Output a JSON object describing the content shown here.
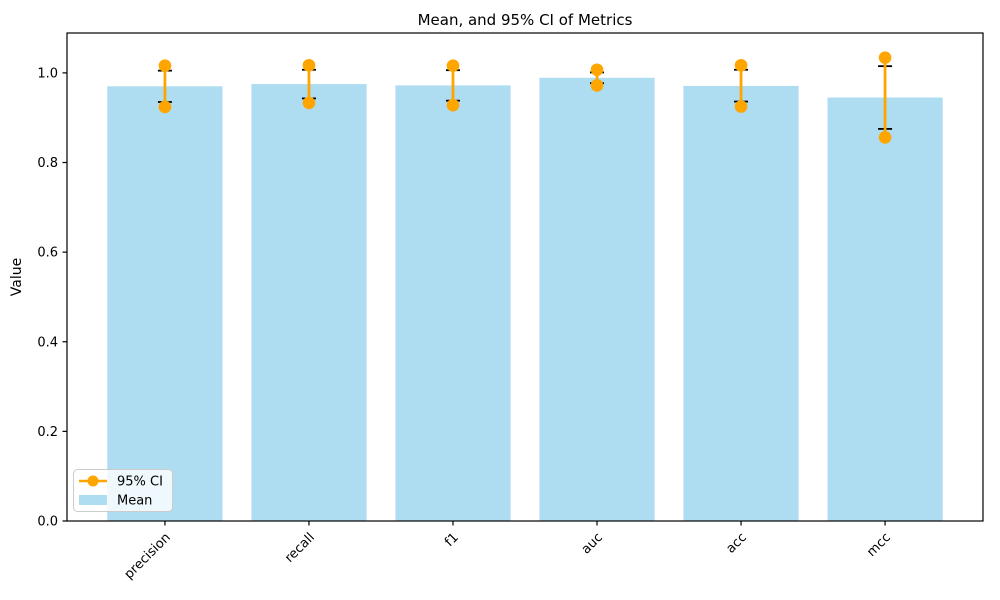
{
  "figure": {
    "background": "#ffffff"
  },
  "chart_data": {
    "type": "bar",
    "title": "Mean, and 95% CI of Metrics",
    "xlabel": "",
    "ylabel": "Value",
    "categories": [
      "precision",
      "recall",
      "f1",
      "auc",
      "acc",
      "mcc"
    ],
    "series": [
      {
        "name": "Mean",
        "values": [
          0.97,
          0.975,
          0.972,
          0.989,
          0.971,
          0.945
        ]
      }
    ],
    "error_bars": {
      "low": [
        0.935,
        0.943,
        0.938,
        0.977,
        0.936,
        0.875
      ],
      "high": [
        1.005,
        1.007,
        1.006,
        1.001,
        1.007,
        1.015
      ]
    },
    "ci_95": {
      "low": [
        0.924,
        0.933,
        0.928,
        0.972,
        0.925,
        0.856
      ],
      "high": [
        1.016,
        1.017,
        1.016,
        1.007,
        1.017,
        1.034
      ]
    },
    "ylim": [
      0,
      1.089
    ],
    "yticks": [
      0.0,
      0.2,
      0.4,
      0.6,
      0.8,
      1.0
    ],
    "ytick_labels": [
      "0.0",
      "0.2",
      "0.4",
      "0.6",
      "0.8",
      "1.0"
    ],
    "xtick_rotation_deg": 45,
    "grid": false,
    "bar_width_fraction": 0.8,
    "legend": {
      "position": "lower-left",
      "entries": [
        {
          "label": "95% CI",
          "marker": "line-circle",
          "color": "#ffa500"
        },
        {
          "label": "Mean",
          "marker": "patch",
          "color": "#aedcf0"
        }
      ]
    },
    "colors": {
      "bar": "#aedcf0",
      "ci": "#ffa500",
      "error_bar": "#000000",
      "frame": "#000000",
      "legend_edge": "#cccccc",
      "background": "#ffffff"
    }
  }
}
